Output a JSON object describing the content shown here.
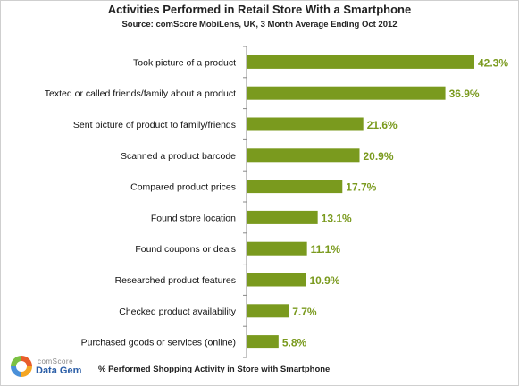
{
  "chart_data": {
    "type": "bar",
    "orientation": "horizontal",
    "title": "Activities Performed in Retail Store With a Smartphone",
    "subtitle": "Source: comScore MobiLens, UK,  3 Month Average Ending Oct 2012",
    "xlabel": "% Performed  Shopping  Activity  in Store with Smartphone",
    "ylabel": "",
    "xlim": [
      0,
      42.3
    ],
    "grid": false,
    "bar_color": "#7a9a1e",
    "categories": [
      "Took picture of a product",
      "Texted or called friends/family about a product",
      "Sent picture of product to family/friends",
      "Scanned a product barcode",
      "Compared product prices",
      "Found store location",
      "Found coupons or deals",
      "Researched product features",
      "Checked product availability",
      "Purchased goods or services (online)"
    ],
    "values": [
      42.3,
      36.9,
      21.6,
      20.9,
      17.7,
      13.1,
      11.1,
      10.9,
      7.7,
      5.8
    ],
    "value_labels": [
      "42.3%",
      "36.9%",
      "21.6%",
      "20.9%",
      "17.7%",
      "13.1%",
      "11.1%",
      "10.9%",
      "7.7%",
      "5.8%"
    ]
  },
  "logo": {
    "line1": "comScore",
    "line2": "Data Gem",
    "colors": [
      "#e85d2a",
      "#f5a623",
      "#4a90d9",
      "#7bc143"
    ]
  }
}
